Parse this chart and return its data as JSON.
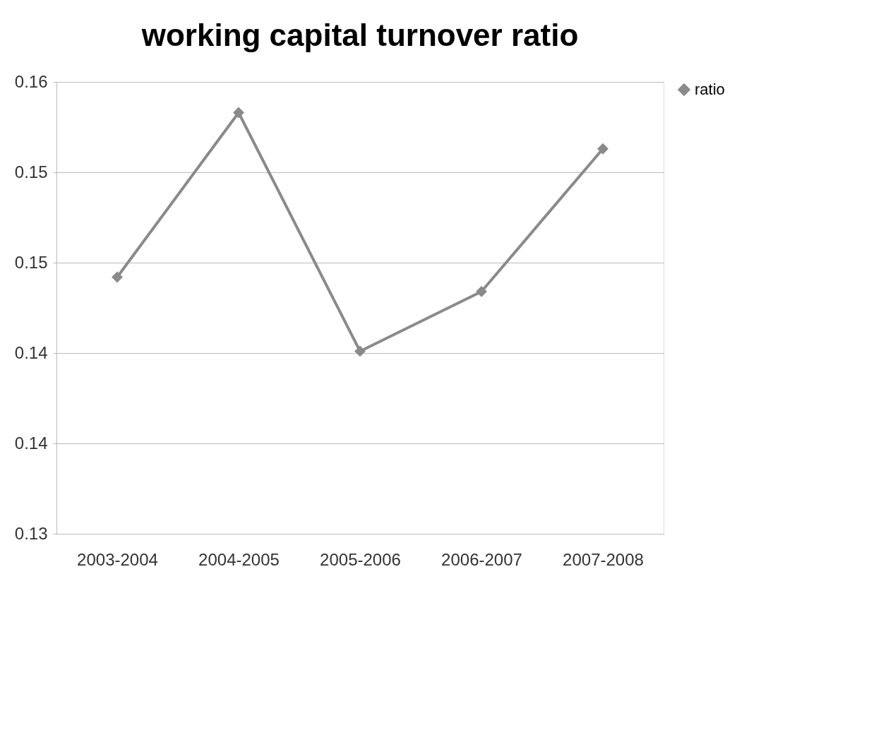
{
  "chart_data": {
    "type": "line",
    "title": "working capital turnover ratio",
    "categories": [
      "2003-2004",
      "2004-2005",
      "2005-2006",
      "2006-2007",
      "2007-2008"
    ],
    "series": [
      {
        "name": "ratio",
        "color": "#8a8a8a",
        "values": [
          0.1442,
          0.1533,
          0.1401,
          0.1434,
          0.1513
        ]
      }
    ],
    "ylim": [
      0.13,
      0.155
    ],
    "yticks": [
      {
        "value": 0.13,
        "label": "0.13"
      },
      {
        "value": 0.135,
        "label": "0.14"
      },
      {
        "value": 0.14,
        "label": "0.14"
      },
      {
        "value": 0.145,
        "label": "0.15"
      },
      {
        "value": 0.15,
        "label": "0.15"
      },
      {
        "value": 0.155,
        "label": "0.16"
      }
    ],
    "grid": "y",
    "legend": "right",
    "marker": "diamond",
    "line_style": "solid"
  }
}
